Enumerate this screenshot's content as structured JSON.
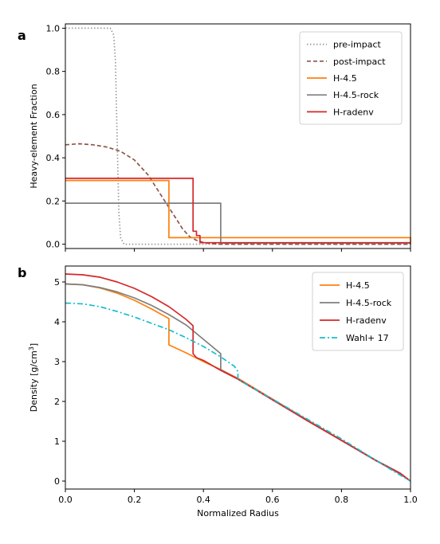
{
  "chart_data": [
    {
      "panel_label": "a",
      "type": "line",
      "xlabel": "",
      "ylabel": "Heavy-element Fraction",
      "xlim": [
        0,
        1.0
      ],
      "ylim": [
        -0.02,
        1.02
      ],
      "x_ticks": [
        0.0,
        0.2,
        0.4,
        0.6,
        0.8,
        1.0
      ],
      "x_tick_labels": [
        "",
        "",
        "",
        "",
        "",
        ""
      ],
      "y_ticks": [
        0.0,
        0.2,
        0.4,
        0.6,
        0.8,
        1.0
      ],
      "y_tick_labels": [
        "0.0",
        "0.2",
        "0.4",
        "0.6",
        "0.8",
        "1.0"
      ],
      "legend_position": "top-right",
      "series": [
        {
          "name": "pre-impact",
          "color": "#999999",
          "style": "dotted",
          "x": [
            0.0,
            0.13,
            0.14,
            0.145,
            0.15,
            0.155,
            0.16,
            0.17,
            1.0
          ],
          "y": [
            1.0,
            1.0,
            0.97,
            0.85,
            0.5,
            0.15,
            0.03,
            0.0,
            0.0
          ]
        },
        {
          "name": "post-impact",
          "color": "#8c564b",
          "style": "dashed",
          "x": [
            0.0,
            0.04,
            0.08,
            0.12,
            0.16,
            0.2,
            0.24,
            0.28,
            0.3,
            0.32,
            0.34,
            0.36,
            0.38,
            0.4,
            0.42,
            0.45,
            1.0
          ],
          "y": [
            0.46,
            0.465,
            0.46,
            0.45,
            0.43,
            0.39,
            0.32,
            0.22,
            0.17,
            0.12,
            0.07,
            0.035,
            0.018,
            0.008,
            0.003,
            0.0,
            0.0
          ]
        },
        {
          "name": "H-4.5",
          "color": "#ff7f0e",
          "style": "solid",
          "x": [
            0.0,
            0.3,
            0.3,
            1.0,
            1.0
          ],
          "y": [
            0.295,
            0.295,
            0.03,
            0.03,
            0.0
          ]
        },
        {
          "name": "H-4.5-rock",
          "color": "#7f7f7f",
          "style": "solid",
          "x": [
            0.0,
            0.45,
            0.45,
            1.0
          ],
          "y": [
            0.19,
            0.19,
            0.005,
            0.005
          ]
        },
        {
          "name": "H-radenv",
          "color": "#d62728",
          "style": "solid",
          "x": [
            0.0,
            0.37,
            0.37,
            0.38,
            0.38,
            0.39,
            0.39,
            1.0
          ],
          "y": [
            0.305,
            0.305,
            0.06,
            0.06,
            0.04,
            0.04,
            0.007,
            0.007
          ]
        }
      ]
    },
    {
      "panel_label": "b",
      "type": "line",
      "xlabel": "Normalized Radius",
      "ylabel": "Density [g/cm³]",
      "ylabel_parts": [
        "Density [",
        "g",
        "/",
        "cm",
        "3",
        "]"
      ],
      "xlim": [
        0,
        1.0
      ],
      "ylim": [
        -0.2,
        5.4
      ],
      "x_ticks": [
        0.0,
        0.2,
        0.4,
        0.6,
        0.8,
        1.0
      ],
      "x_tick_labels": [
        "0.0",
        "0.2",
        "0.4",
        "0.6",
        "0.8",
        "1.0"
      ],
      "y_ticks": [
        0,
        1,
        2,
        3,
        4,
        5
      ],
      "y_tick_labels": [
        "0",
        "1",
        "2",
        "3",
        "4",
        "5"
      ],
      "legend_position": "top-right",
      "series": [
        {
          "name": "H-4.5",
          "color": "#ff7f0e",
          "style": "solid",
          "x": [
            0.0,
            0.05,
            0.1,
            0.15,
            0.2,
            0.25,
            0.3,
            0.3,
            0.35,
            0.4,
            0.45,
            0.5,
            0.6,
            0.7,
            0.8,
            0.9,
            0.97,
            1.0
          ],
          "y": [
            4.95,
            4.93,
            4.85,
            4.72,
            4.54,
            4.32,
            4.08,
            3.42,
            3.22,
            3.0,
            2.8,
            2.58,
            2.06,
            1.54,
            1.03,
            0.52,
            0.18,
            0.0
          ]
        },
        {
          "name": "H-4.5-rock",
          "color": "#7f7f7f",
          "style": "solid",
          "x": [
            0.0,
            0.05,
            0.1,
            0.15,
            0.2,
            0.25,
            0.3,
            0.35,
            0.4,
            0.45,
            0.45,
            0.5,
            0.6,
            0.7,
            0.8,
            0.9,
            0.97,
            1.0
          ],
          "y": [
            4.95,
            4.93,
            4.86,
            4.75,
            4.6,
            4.41,
            4.18,
            3.92,
            3.56,
            3.2,
            2.8,
            2.56,
            2.05,
            1.53,
            1.02,
            0.51,
            0.18,
            0.0
          ]
        },
        {
          "name": "H-radenv",
          "color": "#d62728",
          "style": "solid",
          "x": [
            0.0,
            0.05,
            0.1,
            0.15,
            0.2,
            0.25,
            0.3,
            0.35,
            0.37,
            0.37,
            0.38,
            0.4,
            0.45,
            0.5,
            0.6,
            0.7,
            0.8,
            0.9,
            0.97,
            1.0
          ],
          "y": [
            5.2,
            5.18,
            5.12,
            5.0,
            4.84,
            4.63,
            4.38,
            4.06,
            3.9,
            3.2,
            3.1,
            3.03,
            2.78,
            2.56,
            2.04,
            1.52,
            1.02,
            0.52,
            0.2,
            0.0
          ]
        },
        {
          "name": "Wahl+ 17",
          "color": "#17becf",
          "style": "dashdot",
          "x": [
            0.0,
            0.05,
            0.1,
            0.15,
            0.2,
            0.25,
            0.3,
            0.35,
            0.4,
            0.45,
            0.49,
            0.5,
            0.5,
            0.55,
            0.6,
            0.7,
            0.8,
            0.9,
            0.97,
            1.0
          ],
          "y": [
            4.47,
            4.45,
            4.38,
            4.26,
            4.12,
            3.96,
            3.8,
            3.6,
            3.38,
            3.12,
            2.88,
            2.75,
            2.55,
            2.3,
            2.06,
            1.56,
            1.06,
            0.52,
            0.15,
            0.0
          ]
        }
      ]
    }
  ]
}
